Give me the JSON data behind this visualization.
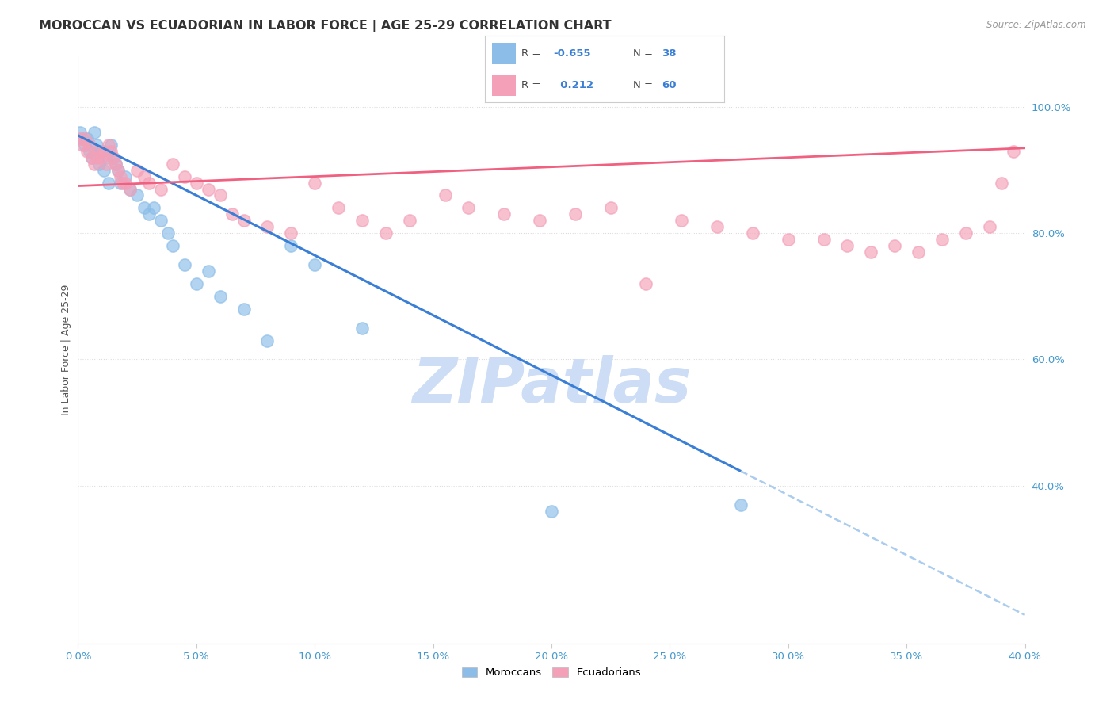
{
  "title": "MOROCCAN VS ECUADORIAN IN LABOR FORCE | AGE 25-29 CORRELATION CHART",
  "source": "Source: ZipAtlas.com",
  "ylabel": "In Labor Force | Age 25-29",
  "xlim": [
    0.0,
    0.4
  ],
  "ylim": [
    0.15,
    1.08
  ],
  "yticks_right": [
    0.4,
    0.6,
    0.8,
    1.0
  ],
  "moroccan_color": "#8bbde8",
  "ecuadorian_color": "#f4a0b8",
  "moroccan_line_color": "#3a7fd5",
  "ecuadorian_line_color": "#f06080",
  "legend_r_color": "#3a7fd5",
  "watermark_color": "#ccddf5",
  "watermark_text": "ZIPatlas",
  "moroccan_r": -0.655,
  "moroccan_n": 38,
  "ecuadorian_r": 0.212,
  "ecuadorian_n": 60,
  "moroccan_x": [
    0.001,
    0.002,
    0.003,
    0.004,
    0.005,
    0.006,
    0.007,
    0.008,
    0.009,
    0.01,
    0.011,
    0.012,
    0.013,
    0.014,
    0.015,
    0.016,
    0.017,
    0.018,
    0.02,
    0.022,
    0.025,
    0.028,
    0.03,
    0.032,
    0.035,
    0.038,
    0.04,
    0.045,
    0.05,
    0.055,
    0.06,
    0.07,
    0.08,
    0.09,
    0.1,
    0.12,
    0.2,
    0.28
  ],
  "moroccan_y": [
    0.96,
    0.95,
    0.94,
    0.95,
    0.93,
    0.92,
    0.96,
    0.94,
    0.91,
    0.93,
    0.9,
    0.92,
    0.88,
    0.94,
    0.92,
    0.91,
    0.9,
    0.88,
    0.89,
    0.87,
    0.86,
    0.84,
    0.83,
    0.84,
    0.82,
    0.8,
    0.78,
    0.75,
    0.72,
    0.74,
    0.7,
    0.68,
    0.63,
    0.78,
    0.75,
    0.65,
    0.36,
    0.37
  ],
  "ecuadorian_x": [
    0.001,
    0.002,
    0.003,
    0.004,
    0.005,
    0.006,
    0.007,
    0.008,
    0.009,
    0.01,
    0.011,
    0.012,
    0.013,
    0.014,
    0.015,
    0.016,
    0.017,
    0.018,
    0.019,
    0.02,
    0.022,
    0.025,
    0.028,
    0.03,
    0.035,
    0.04,
    0.045,
    0.05,
    0.055,
    0.06,
    0.065,
    0.07,
    0.08,
    0.09,
    0.1,
    0.11,
    0.12,
    0.13,
    0.14,
    0.155,
    0.165,
    0.18,
    0.195,
    0.21,
    0.225,
    0.24,
    0.255,
    0.27,
    0.285,
    0.3,
    0.315,
    0.325,
    0.335,
    0.345,
    0.355,
    0.365,
    0.375,
    0.385,
    0.39,
    0.395
  ],
  "ecuadorian_y": [
    0.95,
    0.94,
    0.95,
    0.93,
    0.94,
    0.92,
    0.91,
    0.92,
    0.93,
    0.92,
    0.93,
    0.91,
    0.94,
    0.93,
    0.92,
    0.91,
    0.9,
    0.89,
    0.88,
    0.88,
    0.87,
    0.9,
    0.89,
    0.88,
    0.87,
    0.91,
    0.89,
    0.88,
    0.87,
    0.86,
    0.83,
    0.82,
    0.81,
    0.8,
    0.88,
    0.84,
    0.82,
    0.8,
    0.82,
    0.86,
    0.84,
    0.83,
    0.82,
    0.83,
    0.84,
    0.72,
    0.82,
    0.81,
    0.8,
    0.79,
    0.79,
    0.78,
    0.77,
    0.78,
    0.77,
    0.79,
    0.8,
    0.81,
    0.88,
    0.93
  ],
  "background_color": "#ffffff",
  "grid_color": "#dddddd",
  "axis_color": "#cccccc",
  "tick_color": "#4499cc",
  "title_fontsize": 11.5,
  "label_fontsize": 9,
  "tick_fontsize": 9.5,
  "moroccan_trend_x0": 0.0,
  "moroccan_trend_y0": 0.955,
  "moroccan_trend_x1": 0.35,
  "moroccan_trend_y1": 0.29,
  "ecuadorian_trend_x0": 0.0,
  "ecuadorian_trend_y0": 0.875,
  "ecuadorian_trend_x1": 0.4,
  "ecuadorian_trend_y1": 0.935
}
